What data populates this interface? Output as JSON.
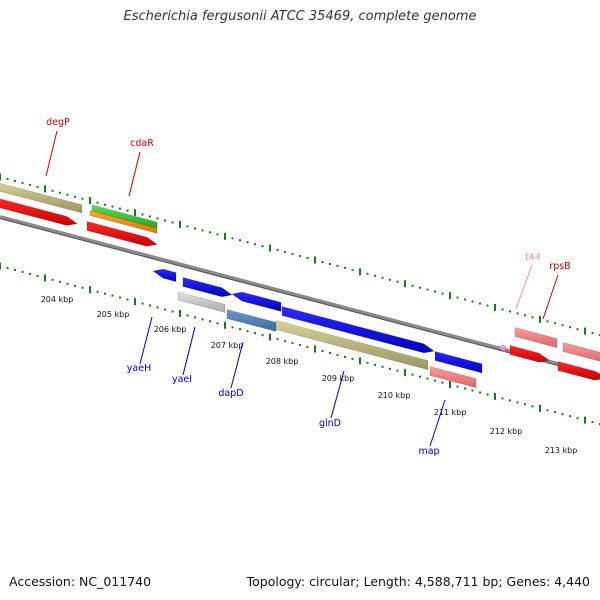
{
  "title": "Escherichia fergusonii ATCC 35469, complete genome",
  "footer": {
    "accession": "Accession: NC_011740",
    "stats": "Topology: circular; Length: 4,588,711 bp; Genes: 4,440"
  },
  "scale_labels": [
    "204 kbp",
    "205 kbp",
    "206 kbp",
    "207 kbp",
    "208 kbp",
    "209 kbp",
    "210 kbp",
    "211 kbp",
    "212 kbp",
    "213 kbp"
  ],
  "genes": [
    {
      "name": "degP",
      "color": "#cc0000"
    },
    {
      "name": "cdaR",
      "color": "#cc0000"
    },
    {
      "name": "t44",
      "color": "#ff88bb"
    },
    {
      "name": "rpsB",
      "color": "#cc0000"
    },
    {
      "name": "yaeH",
      "color": "#0000cc"
    },
    {
      "name": "yaeI",
      "color": "#0000cc"
    },
    {
      "name": "dapD",
      "color": "#0000cc"
    },
    {
      "name": "glnD",
      "color": "#0000cc"
    },
    {
      "name": "map",
      "color": "#0000cc"
    }
  ]
}
